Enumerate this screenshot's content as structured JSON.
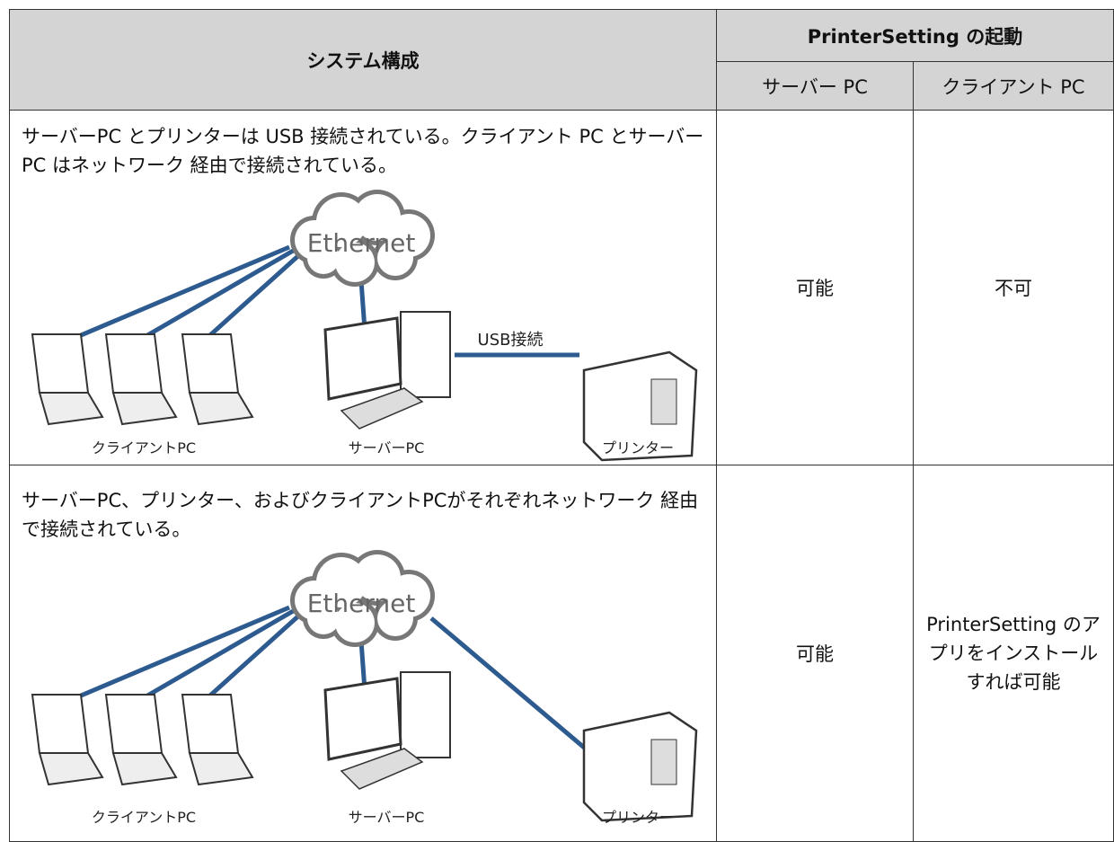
{
  "table": {
    "header": {
      "system": "システム構成",
      "launch": "PrinterSetting の起動",
      "server": "サーバー PC",
      "client": "クライアント PC"
    },
    "rows": [
      {
        "description": "サーバーPC とプリンターは USB 接続されている。クライアント PC とサーバー PC はネットワーク 経由で接続されている。",
        "diagram": {
          "network": "Ethernet",
          "connection": "USB接続",
          "client_label": "クライアントPC",
          "server_label": "サーバーPC",
          "printer_label": "プリンター"
        },
        "server": "可能",
        "client": "不可"
      },
      {
        "description": "サーバーPC、プリンター、およびクライアントPCがそれぞれネットワーク 経由で接続されている。",
        "diagram": {
          "network": "Ethernet",
          "client_label": "クライアントPC",
          "server_label": "サーバーPC",
          "printer_label": "プリンター"
        },
        "server": "可能",
        "client": "PrinterSetting のアプリをインストールすれば可能"
      }
    ]
  }
}
